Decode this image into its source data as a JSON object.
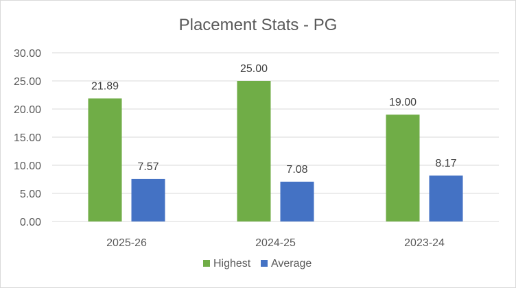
{
  "chart_data": {
    "type": "bar",
    "title": "Placement Stats - PG",
    "xlabel": "",
    "ylabel": "",
    "categories": [
      "2025-26",
      "2024-25",
      "2023-24"
    ],
    "series": [
      {
        "name": "Highest",
        "values": [
          21.89,
          25.0,
          19.0
        ],
        "labels": [
          "21.89",
          "25.00",
          "19.00"
        ],
        "color": "#70ad47"
      },
      {
        "name": "Average",
        "values": [
          7.57,
          7.08,
          8.17
        ],
        "labels": [
          "7.57",
          "7.08",
          "8.17"
        ],
        "color": "#4472c4"
      }
    ],
    "ylim": [
      0,
      30
    ],
    "yticks": [
      "0.00",
      "5.00",
      "10.00",
      "15.00",
      "20.00",
      "25.00",
      "30.00"
    ],
    "grid": true,
    "legend_position": "bottom"
  }
}
